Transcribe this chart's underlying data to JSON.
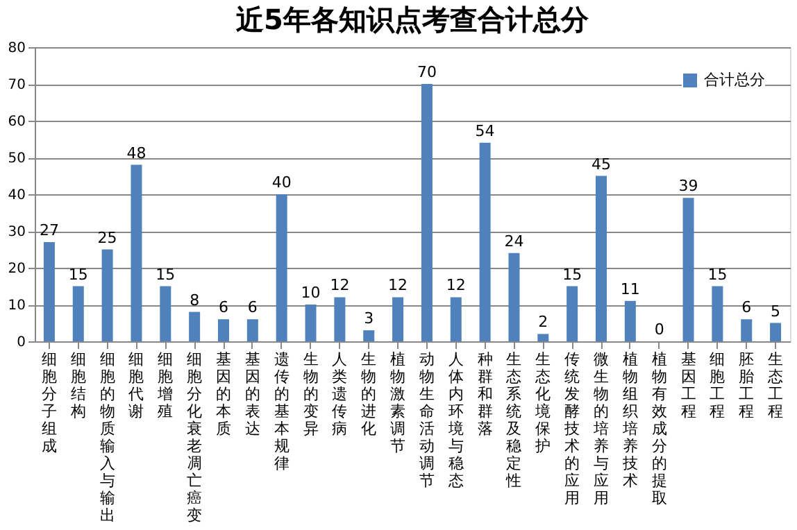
{
  "chart_data": {
    "type": "bar",
    "title": "近5年各知识点考查合计总分",
    "categories": [
      "细胞分子组成",
      "细胞结构",
      "细胞的物质输入与输出",
      "细胞代谢",
      "细胞增殖",
      "细胞分化衰老凋亡癌变",
      "基因的本质",
      "基因的表达",
      "遗传的基本规律",
      "生物的变异",
      "人类遗传病",
      "生物的进化",
      "植物激素调节",
      "动物生命活动调节",
      "人体内环境与稳态",
      "种群和群落",
      "生态系统及稳定性",
      "生态化境保护",
      "传统发酵技术的应用",
      "微生物的培养与应用",
      "植物组织培养技术",
      "植物有效成分的提取",
      "基因工程",
      "细胞工程",
      "胚胎工程",
      "生态工程"
    ],
    "series": [
      {
        "name": "合计总分",
        "color": "#4f81bd",
        "values": [
          27,
          15,
          25,
          48,
          15,
          8,
          6,
          6,
          40,
          10,
          12,
          3,
          12,
          70,
          12,
          54,
          24,
          2,
          15,
          45,
          11,
          0,
          39,
          15,
          6,
          5
        ]
      }
    ],
    "ylim": [
      0,
      80
    ],
    "yticks": [
      0,
      10,
      20,
      30,
      40,
      50,
      60,
      70,
      80
    ],
    "grid": "y",
    "legend": "top right",
    "data_labels": true
  }
}
